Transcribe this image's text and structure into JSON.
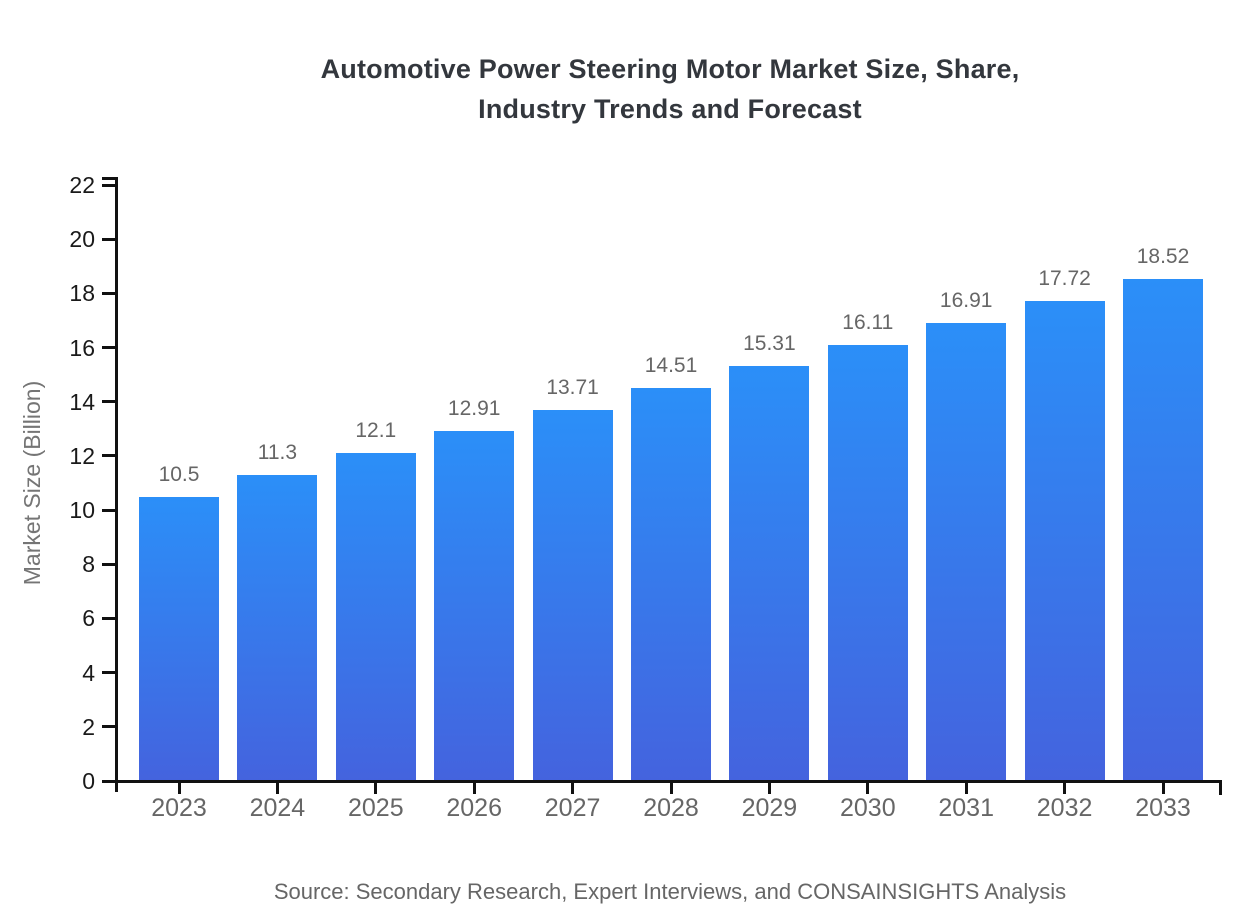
{
  "title": {
    "line1": "Automotive Power Steering Motor Market Size, Share,",
    "line2": "Industry Trends and Forecast"
  },
  "source": "Source: Secondary Research, Expert Interviews, and CONSAINSIGHTS Analysis",
  "chart_data": {
    "type": "bar",
    "title": "Automotive Power Steering Motor Market Size, Share, Industry Trends and Forecast",
    "categories": [
      "2023",
      "2024",
      "2025",
      "2026",
      "2027",
      "2028",
      "2029",
      "2030",
      "2031",
      "2032",
      "2033"
    ],
    "values": [
      10.5,
      11.3,
      12.1,
      12.91,
      13.71,
      14.51,
      15.31,
      16.11,
      16.91,
      17.72,
      18.52
    ],
    "value_labels": [
      "10.5",
      "11.3",
      "12.1",
      "12.91",
      "13.71",
      "14.51",
      "15.31",
      "16.11",
      "16.91",
      "17.72",
      "18.52"
    ],
    "xlabel": "",
    "ylabel": "Market Size (Billion)",
    "ylim": [
      0,
      22
    ],
    "yticks": [
      0,
      2,
      4,
      6,
      8,
      10,
      12,
      14,
      16,
      18,
      20,
      22
    ],
    "grid": false,
    "legend": null,
    "colors": {
      "bar_gradient_top": "#2B8FF8",
      "bar_gradient_bottom": "#4463DE",
      "axis": "#111111",
      "ytick_text": "#1a1a1a",
      "xtick_text": "#666666",
      "value_label_text": "#666666",
      "title_text": "#33373d",
      "ylabel_text": "#757575",
      "source_text": "#666666"
    }
  }
}
